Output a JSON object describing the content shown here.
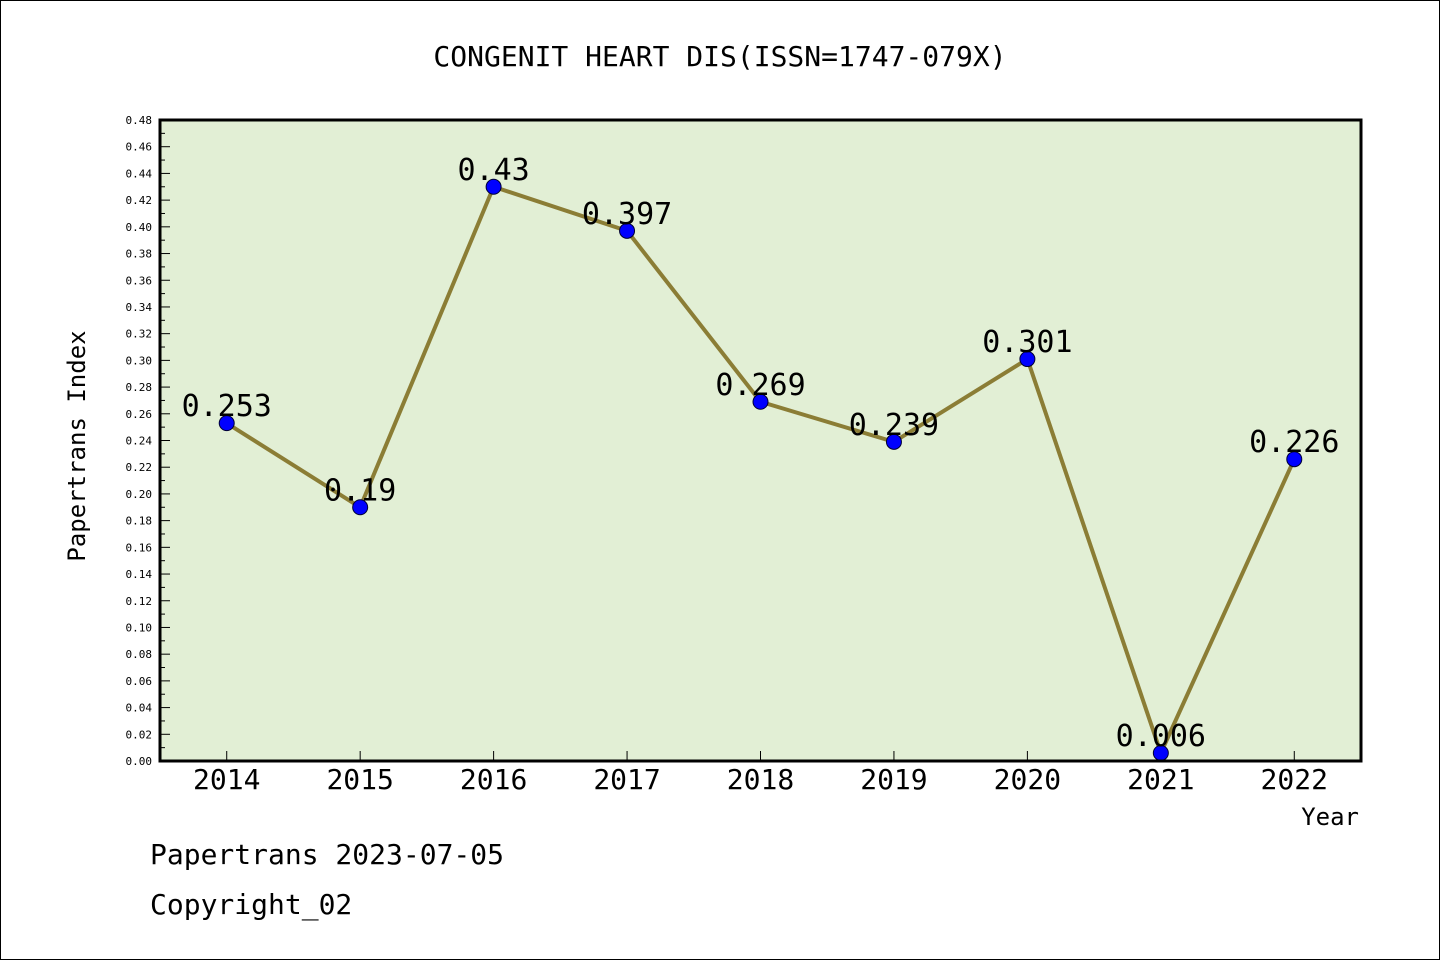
{
  "chart_data": {
    "type": "line",
    "title": "CONGENIT HEART DIS(ISSN=1747-079X)",
    "xlabel": "Year",
    "ylabel": "Papertrans Index",
    "categories": [
      "2014",
      "2015",
      "2016",
      "2017",
      "2018",
      "2019",
      "2020",
      "2021",
      "2022"
    ],
    "values": [
      0.253,
      0.19,
      0.43,
      0.397,
      0.269,
      0.239,
      0.301,
      0.006,
      0.226
    ],
    "data_labels": [
      "0.253",
      "0.19",
      "0.43",
      "0.397",
      "0.269",
      "0.239",
      "0.301",
      "0.006",
      "0.226"
    ],
    "ylim": [
      0,
      0.48
    ],
    "yticks": [
      "0.00",
      "0.02",
      "0.04",
      "0.06",
      "0.08",
      "0.10",
      "0.12",
      "0.14",
      "0.16",
      "0.18",
      "0.20",
      "0.22",
      "0.24",
      "0.26",
      "0.28",
      "0.30",
      "0.32",
      "0.34",
      "0.36",
      "0.38",
      "0.40",
      "0.42",
      "0.44",
      "0.46",
      "0.48"
    ],
    "grid": false,
    "colors": {
      "plot_background": "#e2efd5",
      "line": "#8b7d35",
      "marker": "#0000ff",
      "frame": "#000000"
    }
  },
  "footer": {
    "line1": "Papertrans 2023-07-05",
    "line2": "Copyright_02"
  }
}
